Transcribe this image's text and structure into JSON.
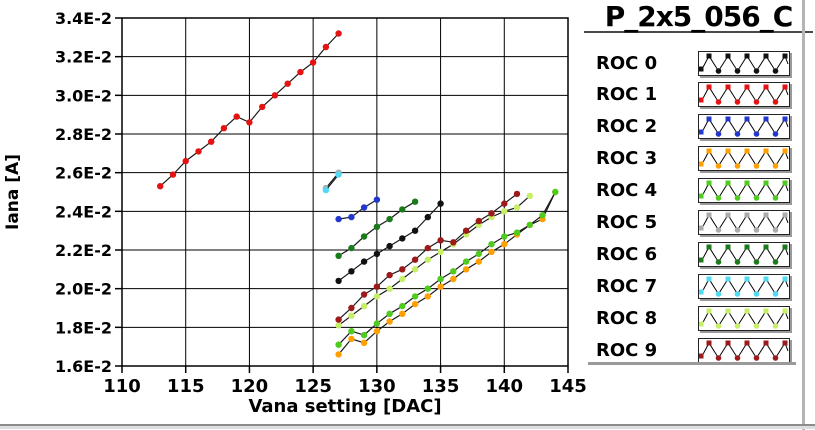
{
  "title": "P_2x5_056_C",
  "chart_data": {
    "type": "line",
    "title": "P_2x5_056_C",
    "xlabel": "Vana setting [DAC]",
    "ylabel": "Iana [A]",
    "xlim": [
      110,
      145
    ],
    "ylim": [
      1.6,
      3.4
    ],
    "y_unit": "E-2 A (tick labels shown as value×1E-2)",
    "x_ticks": [
      110,
      115,
      120,
      125,
      130,
      135,
      140,
      145
    ],
    "y_ticks": [
      1.6,
      1.8,
      2.0,
      2.2,
      2.4,
      2.6,
      2.8,
      3.0,
      3.2,
      3.4
    ],
    "grid": true,
    "legend_position": "right",
    "line_color": "#1a1a1a",
    "series": [
      {
        "name": "ROC 0",
        "color": "#111111",
        "x": [
          127,
          128,
          129,
          130,
          131,
          132,
          133,
          134,
          135
        ],
        "y": [
          2.04,
          2.09,
          2.14,
          2.18,
          2.22,
          2.26,
          2.3,
          2.37,
          2.44
        ]
      },
      {
        "name": "ROC 1",
        "color": "#e51212",
        "x": [
          113,
          114,
          115,
          116,
          117,
          118,
          119,
          120,
          121,
          122,
          123,
          124,
          125,
          126,
          127
        ],
        "y": [
          2.53,
          2.59,
          2.66,
          2.71,
          2.76,
          2.83,
          2.89,
          2.86,
          2.94,
          3.0,
          3.06,
          3.12,
          3.17,
          3.25,
          3.32
        ]
      },
      {
        "name": "ROC 2",
        "color": "#2238cc",
        "x": [
          127,
          128,
          129,
          130
        ],
        "y": [
          2.36,
          2.37,
          2.42,
          2.46
        ]
      },
      {
        "name": "ROC 3",
        "color": "#ff9f00",
        "x": [
          127,
          128,
          129,
          130,
          131,
          132,
          133,
          134,
          135,
          136,
          137,
          138,
          139,
          140,
          141,
          142,
          143,
          144
        ],
        "y": [
          1.66,
          1.74,
          1.72,
          1.78,
          1.83,
          1.87,
          1.92,
          1.96,
          2.01,
          2.05,
          2.1,
          2.14,
          2.19,
          2.23,
          2.28,
          2.33,
          2.36,
          2.5
        ]
      },
      {
        "name": "ROC 4",
        "color": "#4ecb1e",
        "x": [
          127,
          128,
          129,
          130,
          131,
          132,
          133,
          134,
          135,
          136,
          137,
          138,
          139,
          140,
          141,
          142,
          143,
          144
        ],
        "y": [
          1.71,
          1.78,
          1.76,
          1.82,
          1.87,
          1.91,
          1.96,
          2.0,
          2.05,
          2.09,
          2.14,
          2.18,
          2.23,
          2.27,
          2.29,
          2.33,
          2.38,
          2.5
        ]
      },
      {
        "name": "ROC 5",
        "color": "#ababab",
        "x": [
          126,
          127
        ],
        "y": [
          2.52,
          2.6
        ]
      },
      {
        "name": "ROC 6",
        "color": "#1b7a1b",
        "x": [
          127,
          128,
          129,
          130,
          131,
          132,
          133
        ],
        "y": [
          2.17,
          2.21,
          2.27,
          2.32,
          2.36,
          2.41,
          2.45
        ]
      },
      {
        "name": "ROC 7",
        "color": "#4fd9f2",
        "x": [
          126,
          127
        ],
        "y": [
          2.51,
          2.59
        ]
      },
      {
        "name": "ROC 8",
        "color": "#c6ee67",
        "x": [
          127,
          128,
          129,
          130,
          131,
          132,
          133,
          134,
          135,
          136,
          137,
          138,
          139,
          140,
          141,
          142
        ],
        "y": [
          1.81,
          1.86,
          1.91,
          1.96,
          2.0,
          2.05,
          2.1,
          2.15,
          2.19,
          2.23,
          2.28,
          2.33,
          2.37,
          2.4,
          2.42,
          2.48
        ]
      },
      {
        "name": "ROC 9",
        "color": "#9c1a1a",
        "x": [
          127,
          128,
          129,
          130,
          131,
          132,
          133,
          134,
          135,
          136,
          137,
          138,
          139,
          140,
          141
        ],
        "y": [
          1.84,
          1.9,
          1.97,
          2.01,
          2.07,
          2.1,
          2.15,
          2.21,
          2.25,
          2.24,
          2.3,
          2.35,
          2.39,
          2.44,
          2.49
        ]
      }
    ]
  }
}
